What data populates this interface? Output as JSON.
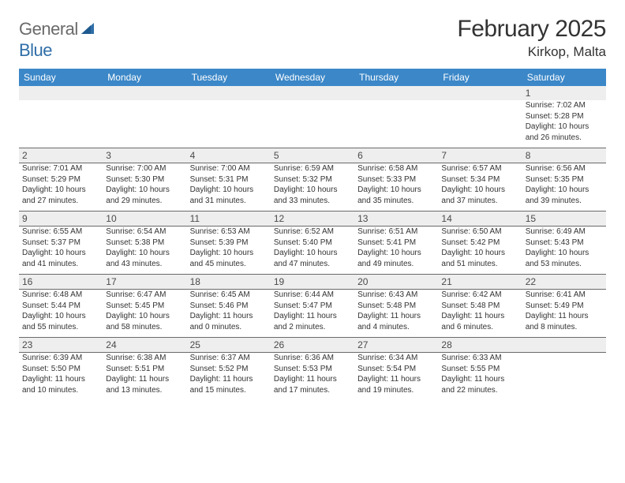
{
  "brand": {
    "part1": "General",
    "part2": "Blue"
  },
  "title": "February 2025",
  "location": "Kirkop, Malta",
  "colors": {
    "header_bg": "#3b87c8",
    "header_text": "#ffffff",
    "daynum_bg": "#eeeeee",
    "text": "#333333",
    "rule": "#6a6a6a",
    "logo_gray": "#6a6a6a",
    "logo_blue": "#2f6ea8"
  },
  "dows": [
    "Sunday",
    "Monday",
    "Tuesday",
    "Wednesday",
    "Thursday",
    "Friday",
    "Saturday"
  ],
  "weeks": [
    {
      "nums": [
        "",
        "",
        "",
        "",
        "",
        "",
        "1"
      ],
      "cells": [
        null,
        null,
        null,
        null,
        null,
        null,
        {
          "sr": "Sunrise: 7:02 AM",
          "ss": "Sunset: 5:28 PM",
          "dl": "Daylight: 10 hours and 26 minutes."
        }
      ]
    },
    {
      "nums": [
        "2",
        "3",
        "4",
        "5",
        "6",
        "7",
        "8"
      ],
      "cells": [
        {
          "sr": "Sunrise: 7:01 AM",
          "ss": "Sunset: 5:29 PM",
          "dl": "Daylight: 10 hours and 27 minutes."
        },
        {
          "sr": "Sunrise: 7:00 AM",
          "ss": "Sunset: 5:30 PM",
          "dl": "Daylight: 10 hours and 29 minutes."
        },
        {
          "sr": "Sunrise: 7:00 AM",
          "ss": "Sunset: 5:31 PM",
          "dl": "Daylight: 10 hours and 31 minutes."
        },
        {
          "sr": "Sunrise: 6:59 AM",
          "ss": "Sunset: 5:32 PM",
          "dl": "Daylight: 10 hours and 33 minutes."
        },
        {
          "sr": "Sunrise: 6:58 AM",
          "ss": "Sunset: 5:33 PM",
          "dl": "Daylight: 10 hours and 35 minutes."
        },
        {
          "sr": "Sunrise: 6:57 AM",
          "ss": "Sunset: 5:34 PM",
          "dl": "Daylight: 10 hours and 37 minutes."
        },
        {
          "sr": "Sunrise: 6:56 AM",
          "ss": "Sunset: 5:35 PM",
          "dl": "Daylight: 10 hours and 39 minutes."
        }
      ]
    },
    {
      "nums": [
        "9",
        "10",
        "11",
        "12",
        "13",
        "14",
        "15"
      ],
      "cells": [
        {
          "sr": "Sunrise: 6:55 AM",
          "ss": "Sunset: 5:37 PM",
          "dl": "Daylight: 10 hours and 41 minutes."
        },
        {
          "sr": "Sunrise: 6:54 AM",
          "ss": "Sunset: 5:38 PM",
          "dl": "Daylight: 10 hours and 43 minutes."
        },
        {
          "sr": "Sunrise: 6:53 AM",
          "ss": "Sunset: 5:39 PM",
          "dl": "Daylight: 10 hours and 45 minutes."
        },
        {
          "sr": "Sunrise: 6:52 AM",
          "ss": "Sunset: 5:40 PM",
          "dl": "Daylight: 10 hours and 47 minutes."
        },
        {
          "sr": "Sunrise: 6:51 AM",
          "ss": "Sunset: 5:41 PM",
          "dl": "Daylight: 10 hours and 49 minutes."
        },
        {
          "sr": "Sunrise: 6:50 AM",
          "ss": "Sunset: 5:42 PM",
          "dl": "Daylight: 10 hours and 51 minutes."
        },
        {
          "sr": "Sunrise: 6:49 AM",
          "ss": "Sunset: 5:43 PM",
          "dl": "Daylight: 10 hours and 53 minutes."
        }
      ]
    },
    {
      "nums": [
        "16",
        "17",
        "18",
        "19",
        "20",
        "21",
        "22"
      ],
      "cells": [
        {
          "sr": "Sunrise: 6:48 AM",
          "ss": "Sunset: 5:44 PM",
          "dl": "Daylight: 10 hours and 55 minutes."
        },
        {
          "sr": "Sunrise: 6:47 AM",
          "ss": "Sunset: 5:45 PM",
          "dl": "Daylight: 10 hours and 58 minutes."
        },
        {
          "sr": "Sunrise: 6:45 AM",
          "ss": "Sunset: 5:46 PM",
          "dl": "Daylight: 11 hours and 0 minutes."
        },
        {
          "sr": "Sunrise: 6:44 AM",
          "ss": "Sunset: 5:47 PM",
          "dl": "Daylight: 11 hours and 2 minutes."
        },
        {
          "sr": "Sunrise: 6:43 AM",
          "ss": "Sunset: 5:48 PM",
          "dl": "Daylight: 11 hours and 4 minutes."
        },
        {
          "sr": "Sunrise: 6:42 AM",
          "ss": "Sunset: 5:48 PM",
          "dl": "Daylight: 11 hours and 6 minutes."
        },
        {
          "sr": "Sunrise: 6:41 AM",
          "ss": "Sunset: 5:49 PM",
          "dl": "Daylight: 11 hours and 8 minutes."
        }
      ]
    },
    {
      "nums": [
        "23",
        "24",
        "25",
        "26",
        "27",
        "28",
        ""
      ],
      "cells": [
        {
          "sr": "Sunrise: 6:39 AM",
          "ss": "Sunset: 5:50 PM",
          "dl": "Daylight: 11 hours and 10 minutes."
        },
        {
          "sr": "Sunrise: 6:38 AM",
          "ss": "Sunset: 5:51 PM",
          "dl": "Daylight: 11 hours and 13 minutes."
        },
        {
          "sr": "Sunrise: 6:37 AM",
          "ss": "Sunset: 5:52 PM",
          "dl": "Daylight: 11 hours and 15 minutes."
        },
        {
          "sr": "Sunrise: 6:36 AM",
          "ss": "Sunset: 5:53 PM",
          "dl": "Daylight: 11 hours and 17 minutes."
        },
        {
          "sr": "Sunrise: 6:34 AM",
          "ss": "Sunset: 5:54 PM",
          "dl": "Daylight: 11 hours and 19 minutes."
        },
        {
          "sr": "Sunrise: 6:33 AM",
          "ss": "Sunset: 5:55 PM",
          "dl": "Daylight: 11 hours and 22 minutes."
        },
        null
      ]
    }
  ]
}
